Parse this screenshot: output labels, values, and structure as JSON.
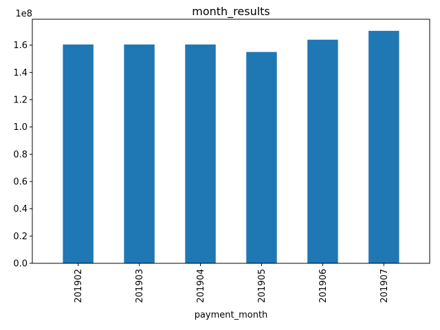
{
  "chart_data": {
    "type": "bar",
    "title": "month_results",
    "xlabel": "payment_month",
    "ylabel": "",
    "categories": [
      "201902",
      "201903",
      "201904",
      "201905",
      "201906",
      "201907"
    ],
    "values": [
      160500000,
      160500000,
      160500000,
      155000000,
      164000000,
      170500000
    ],
    "ylim": [
      0,
      179000000
    ],
    "y_ticks": [
      0,
      20000000,
      40000000,
      60000000,
      80000000,
      100000000,
      120000000,
      140000000,
      160000000
    ],
    "y_tick_labels": [
      "0.0",
      "0.2",
      "0.4",
      "0.6",
      "0.8",
      "1.0",
      "1.2",
      "1.4",
      "1.6"
    ],
    "y_offset_label": "1e8",
    "bar_color": "#1f77b4",
    "grid": false,
    "legend": false
  }
}
